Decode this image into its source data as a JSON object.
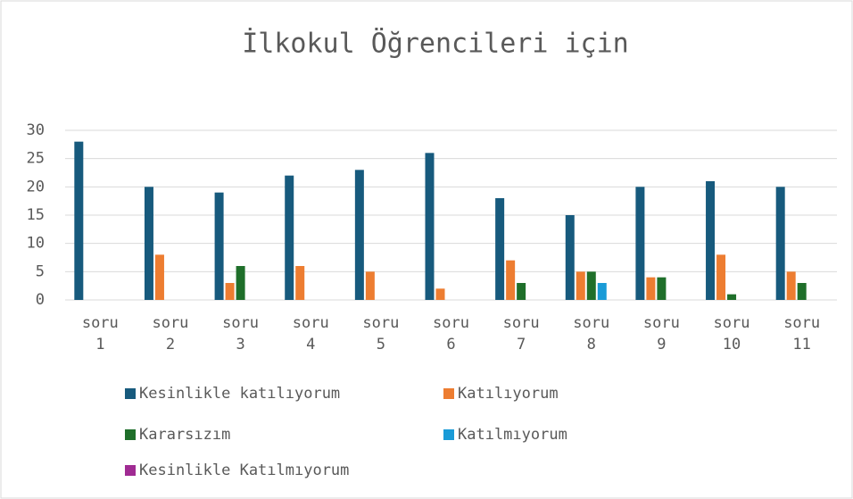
{
  "chart_data": {
    "type": "bar",
    "title": "İlkokul Öğrencileri için",
    "categories": [
      "soru 1",
      "soru 2",
      "soru 3",
      "soru 4",
      "soru 5",
      "soru 6",
      "soru 7",
      "soru 8",
      "soru 9",
      "soru 10",
      "soru 11"
    ],
    "series": [
      {
        "name": "Kesinlikle katılıyorum",
        "color": "#175a7d",
        "values": [
          28,
          20,
          19,
          22,
          23,
          26,
          18,
          15,
          20,
          21,
          20
        ]
      },
      {
        "name": "Katılıyorum",
        "color": "#ed7d31",
        "values": [
          0,
          8,
          3,
          6,
          5,
          2,
          7,
          5,
          4,
          8,
          5
        ]
      },
      {
        "name": "Kararsızım",
        "color": "#1f6f2a",
        "values": [
          0,
          0,
          6,
          0,
          0,
          0,
          3,
          5,
          4,
          1,
          3
        ]
      },
      {
        "name": "Katılmıyorum",
        "color": "#1a9bd7",
        "values": [
          0,
          0,
          0,
          0,
          0,
          0,
          0,
          3,
          0,
          0,
          0
        ]
      },
      {
        "name": "Kesinlikle Katılmıyorum",
        "color": "#a02b93",
        "values": [
          0,
          0,
          0,
          0,
          0,
          0,
          0,
          0,
          0,
          0,
          0
        ]
      }
    ],
    "ylim": [
      0,
      30
    ],
    "yticks": [
      0,
      5,
      10,
      15,
      20,
      25,
      30
    ],
    "grid": true,
    "legend": "bottom"
  }
}
